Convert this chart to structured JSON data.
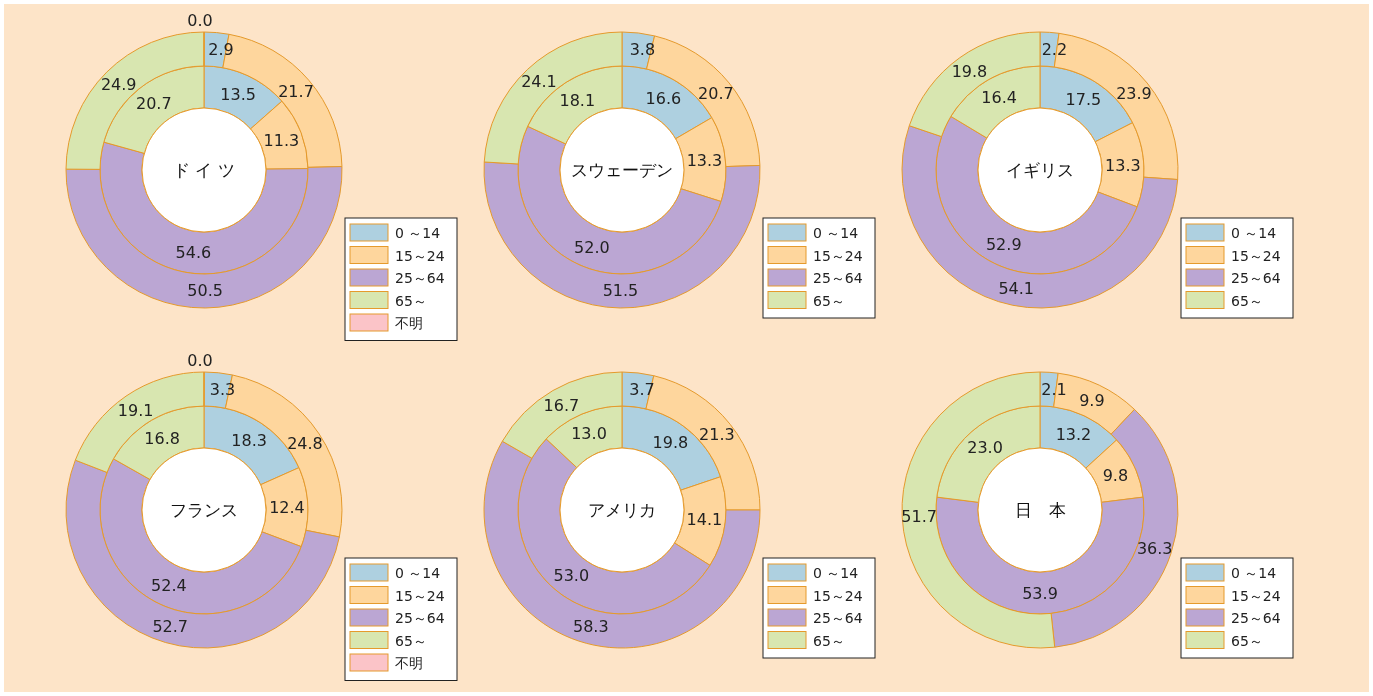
{
  "chart_data": [
    {
      "type": "donut",
      "title": "ド イ ツ",
      "categories": [
        "0 ～14",
        "15～24",
        "25～64",
        "65～",
        "不明"
      ],
      "colors": [
        "#aed0e0",
        "#fed69d",
        "#bba6d3",
        "#d8e6b0",
        "#fbc4c8"
      ],
      "legend": "bottom right",
      "series": [
        {
          "values": [
            13.5,
            11.3,
            54.6,
            20.7,
            null
          ],
          "value_labels": [
            "13.5",
            "11.3",
            "54.6",
            "20.7",
            null
          ]
        },
        {
          "values": [
            2.9,
            21.7,
            50.5,
            24.9,
            0.0
          ],
          "value_labels": [
            "2.9",
            "21.7",
            "50.5",
            "24.9",
            "0.0"
          ]
        }
      ]
    },
    {
      "type": "donut",
      "title": "スウェーデン",
      "categories": [
        "0 ～14",
        "15～24",
        "25～64",
        "65～"
      ],
      "colors": [
        "#aed0e0",
        "#fed69d",
        "#bba6d3",
        "#d8e6b0"
      ],
      "legend": "bottom right",
      "series": [
        {
          "values": [
            16.6,
            13.3,
            52.0,
            18.1
          ],
          "value_labels": [
            "16.6",
            "13.3",
            "52.0",
            "18.1"
          ]
        },
        {
          "values": [
            3.8,
            20.7,
            51.5,
            24.1
          ],
          "value_labels": [
            "3.8",
            "20.7",
            "51.5",
            "24.1"
          ]
        }
      ]
    },
    {
      "type": "donut",
      "title": "イギリス",
      "categories": [
        "0 ～14",
        "15～24",
        "25～64",
        "65～"
      ],
      "colors": [
        "#aed0e0",
        "#fed69d",
        "#bba6d3",
        "#d8e6b0"
      ],
      "legend": "bottom right",
      "series": [
        {
          "values": [
            17.5,
            13.3,
            52.9,
            16.4
          ],
          "value_labels": [
            "17.5",
            "13.3",
            "52.9",
            "16.4"
          ]
        },
        {
          "values": [
            2.2,
            23.9,
            54.1,
            19.8
          ],
          "value_labels": [
            "2.2",
            "23.9",
            "54.1",
            "19.8"
          ]
        }
      ]
    },
    {
      "type": "donut",
      "title": "フランス",
      "categories": [
        "0 ～14",
        "15～24",
        "25～64",
        "65～",
        "不明"
      ],
      "colors": [
        "#aed0e0",
        "#fed69d",
        "#bba6d3",
        "#d8e6b0",
        "#fbc4c8"
      ],
      "legend": "bottom right",
      "series": [
        {
          "values": [
            18.3,
            12.4,
            52.4,
            16.8,
            null
          ],
          "value_labels": [
            "18.3",
            "12.4",
            "52.4",
            "16.8",
            null
          ]
        },
        {
          "values": [
            3.3,
            24.8,
            52.7,
            19.1,
            0.0
          ],
          "value_labels": [
            "3.3",
            "24.8",
            "52.7",
            "19.1",
            "0.0"
          ]
        }
      ]
    },
    {
      "type": "donut",
      "title": "アメリカ",
      "categories": [
        "0 ～14",
        "15～24",
        "25～64",
        "65～"
      ],
      "colors": [
        "#aed0e0",
        "#fed69d",
        "#bba6d3",
        "#d8e6b0"
      ],
      "legend": "bottom right",
      "series": [
        {
          "values": [
            19.8,
            14.1,
            53.0,
            13.0
          ],
          "value_labels": [
            "19.8",
            "14.1",
            "53.0",
            "13.0"
          ]
        },
        {
          "values": [
            3.7,
            21.3,
            58.3,
            16.7
          ],
          "value_labels": [
            "3.7",
            "21.3",
            "58.3",
            "16.7"
          ]
        }
      ]
    },
    {
      "type": "donut",
      "title": "日　本",
      "categories": [
        "0 ～14",
        "15～24",
        "25～64",
        "65～"
      ],
      "colors": [
        "#aed0e0",
        "#fed69d",
        "#bba6d3",
        "#d8e6b0"
      ],
      "legend": "bottom right",
      "series": [
        {
          "values": [
            13.2,
            9.8,
            53.9,
            23.0
          ],
          "value_labels": [
            "13.2",
            "9.8",
            "53.9",
            "23.0"
          ]
        },
        {
          "values": [
            2.1,
            9.9,
            36.3,
            51.7
          ],
          "value_labels": [
            "2.1",
            "9.9",
            "36.3",
            "51.7"
          ]
        }
      ]
    }
  ]
}
